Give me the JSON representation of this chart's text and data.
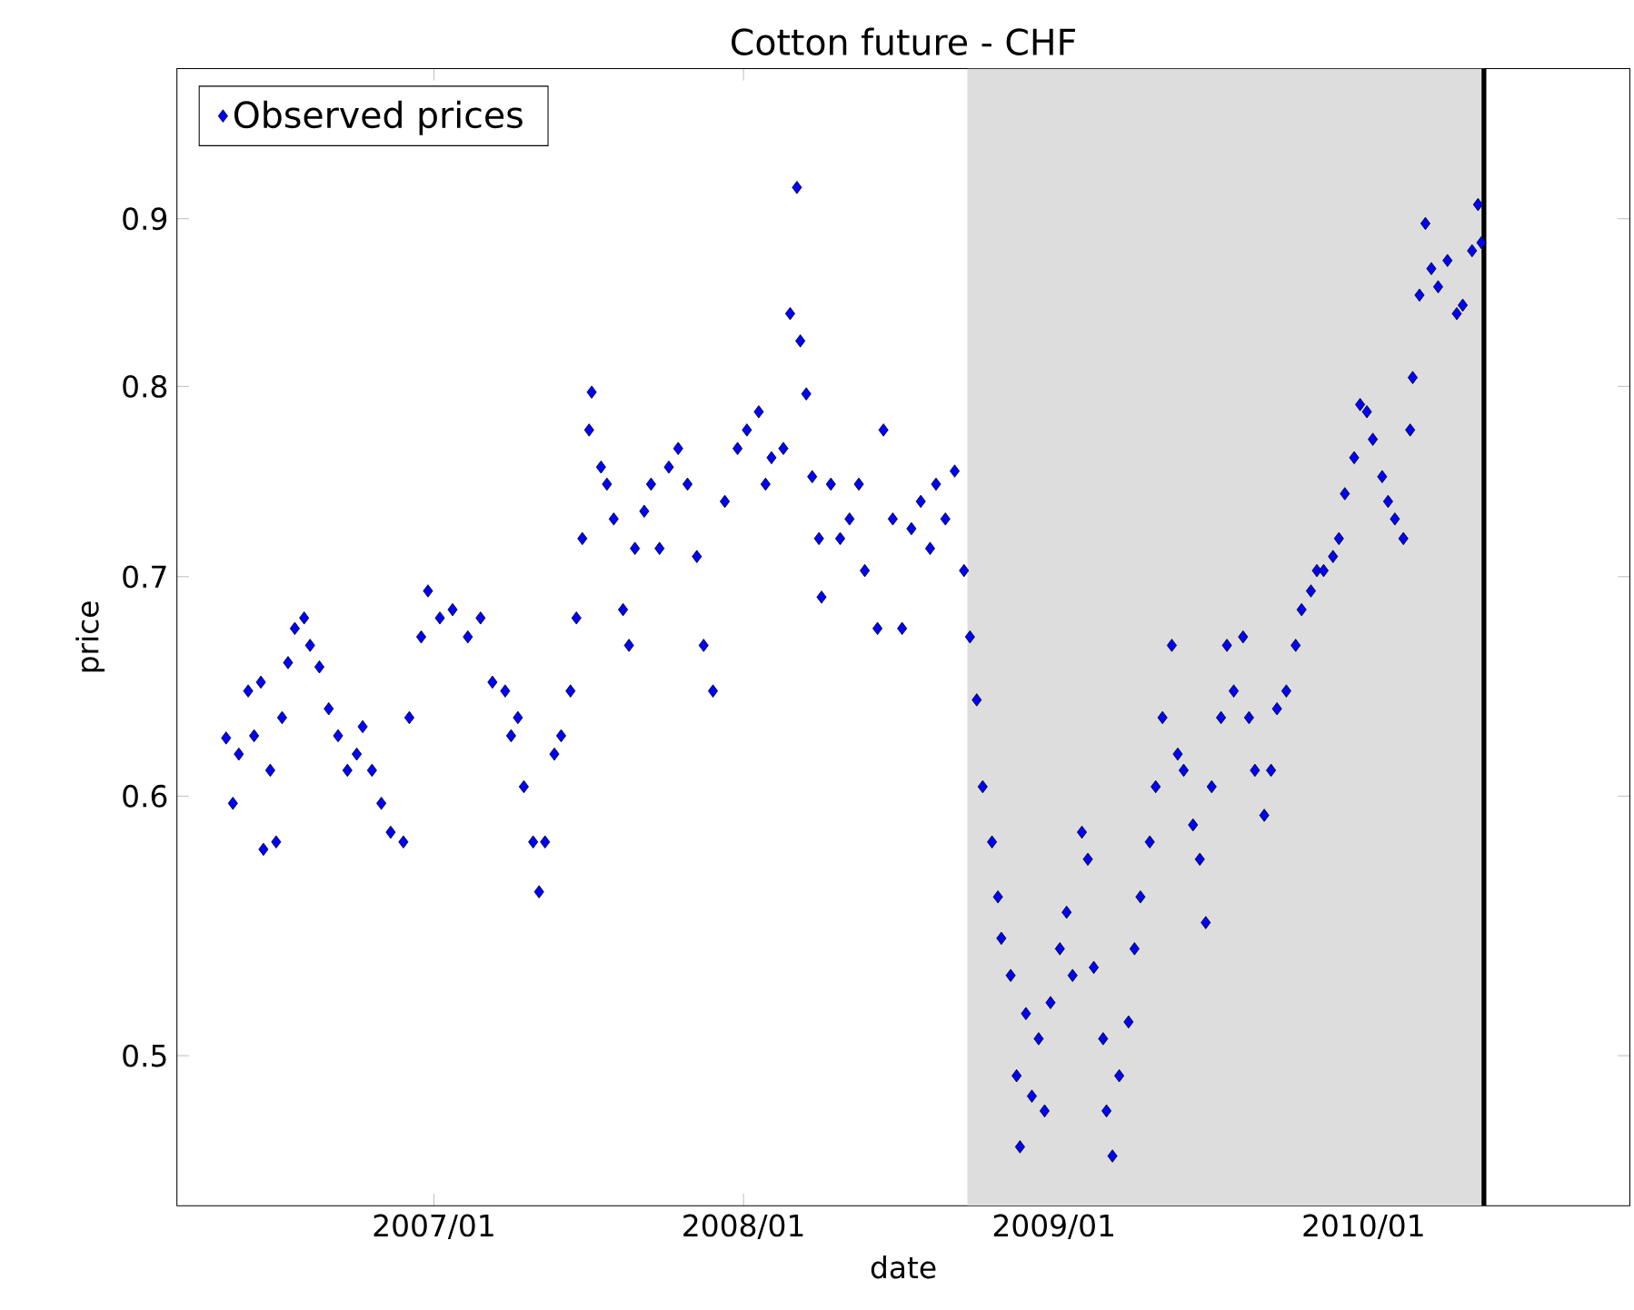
{
  "chart_data": {
    "type": "scatter",
    "title": "Cotton future - CHF",
    "xlabel": "date",
    "ylabel": "price",
    "xlim": [
      "2006-03-04",
      "2010-11-11"
    ],
    "ylim": [
      0.45,
      1.0
    ],
    "log": "y",
    "legend": "top left",
    "marker": "diamond",
    "xticks": [
      {
        "value": "2007-01-01",
        "label": "2007/01"
      },
      {
        "value": "2008-01-01",
        "label": "2008/01"
      },
      {
        "value": "2009-01-01",
        "label": "2009/01"
      },
      {
        "value": "2010-01-01",
        "label": "2010/01"
      }
    ],
    "yticks": [
      0.5,
      0.6,
      0.7,
      0.8,
      0.9
    ],
    "bands": [
      {
        "axis": "x",
        "from": "2008-09-21",
        "to": "2010-05-23",
        "color": "#dddddd"
      }
    ],
    "ref_lines": [
      {
        "axis": "x",
        "value": "2010-05-23",
        "color": "#000000"
      }
    ],
    "series": [
      {
        "name": "Observed prices",
        "color": "#0000ff",
        "x": [
          "2006-05-01",
          "2006-05-09",
          "2006-05-16",
          "2006-05-27",
          "2006-06-03",
          "2006-06-11",
          "2006-06-14",
          "2006-06-22",
          "2006-06-29",
          "2006-07-06",
          "2006-07-13",
          "2006-07-21",
          "2006-08-01",
          "2006-08-08",
          "2006-08-19",
          "2006-08-30",
          "2006-09-10",
          "2006-09-21",
          "2006-10-02",
          "2006-10-09",
          "2006-10-20",
          "2006-10-31",
          "2006-11-11",
          "2006-11-26",
          "2006-12-03",
          "2006-12-17",
          "2006-12-25",
          "2007-01-08",
          "2007-01-23",
          "2007-02-10",
          "2007-02-25",
          "2007-03-11",
          "2007-03-26",
          "2007-04-02",
          "2007-04-10",
          "2007-04-17",
          "2007-04-28",
          "2007-05-05",
          "2007-05-12",
          "2007-05-23",
          "2007-05-31",
          "2007-06-11",
          "2007-06-18",
          "2007-06-25",
          "2007-07-03",
          "2007-07-06",
          "2007-07-17",
          "2007-07-24",
          "2007-08-01",
          "2007-08-12",
          "2007-08-19",
          "2007-08-26",
          "2007-09-06",
          "2007-09-14",
          "2007-09-24",
          "2007-10-05",
          "2007-10-16",
          "2007-10-27",
          "2007-11-07",
          "2007-11-15",
          "2007-11-26",
          "2007-12-10",
          "2007-12-25",
          "2008-01-05",
          "2008-01-19",
          "2008-01-27",
          "2008-02-03",
          "2008-02-17",
          "2008-02-25",
          "2008-03-04",
          "2008-03-08",
          "2008-03-15",
          "2008-03-22",
          "2008-03-30",
          "2008-04-02",
          "2008-04-13",
          "2008-04-24",
          "2008-05-05",
          "2008-05-16",
          "2008-05-23",
          "2008-06-07",
          "2008-06-14",
          "2008-06-25",
          "2008-07-06",
          "2008-07-17",
          "2008-07-28",
          "2008-08-08",
          "2008-08-15",
          "2008-08-26",
          "2008-09-06",
          "2008-09-17",
          "2008-09-24",
          "2008-10-02",
          "2008-10-09",
          "2008-10-20",
          "2008-10-27",
          "2008-10-31",
          "2008-11-11",
          "2008-11-18",
          "2008-11-22",
          "2008-11-29",
          "2008-12-06",
          "2008-12-14",
          "2008-12-21",
          "2008-12-28",
          "2009-01-08",
          "2009-01-16",
          "2009-01-23",
          "2009-02-03",
          "2009-02-10",
          "2009-02-17",
          "2009-02-28",
          "2009-03-04",
          "2009-03-11",
          "2009-03-19",
          "2009-03-30",
          "2009-04-06",
          "2009-04-13",
          "2009-04-24",
          "2009-05-01",
          "2009-05-09",
          "2009-05-20",
          "2009-05-27",
          "2009-06-03",
          "2009-06-14",
          "2009-06-22",
          "2009-06-29",
          "2009-07-06",
          "2009-07-17",
          "2009-07-24",
          "2009-08-01",
          "2009-08-12",
          "2009-08-19",
          "2009-08-26",
          "2009-09-06",
          "2009-09-14",
          "2009-09-21",
          "2009-10-02",
          "2009-10-13",
          "2009-10-20",
          "2009-10-31",
          "2009-11-07",
          "2009-11-15",
          "2009-11-26",
          "2009-12-03",
          "2009-12-10",
          "2009-12-21",
          "2009-12-28",
          "2010-01-05",
          "2010-01-12",
          "2010-01-23",
          "2010-01-30",
          "2010-02-07",
          "2010-02-17",
          "2010-02-25",
          "2010-02-28",
          "2010-03-08",
          "2010-03-15",
          "2010-03-22",
          "2010-03-30",
          "2010-04-10",
          "2010-04-21",
          "2010-04-28",
          "2010-05-09",
          "2010-05-16",
          "2010-05-20"
        ],
        "values": [
          0.625,
          0.597,
          0.618,
          0.646,
          0.626,
          0.65,
          0.578,
          0.611,
          0.581,
          0.634,
          0.659,
          0.675,
          0.68,
          0.667,
          0.657,
          0.638,
          0.626,
          0.611,
          0.618,
          0.63,
          0.611,
          0.597,
          0.585,
          0.581,
          0.634,
          0.671,
          0.693,
          0.68,
          0.684,
          0.671,
          0.68,
          0.65,
          0.646,
          0.626,
          0.634,
          0.604,
          0.581,
          0.561,
          0.581,
          0.618,
          0.626,
          0.646,
          0.68,
          0.719,
          0.776,
          0.797,
          0.756,
          0.747,
          0.729,
          0.684,
          0.667,
          0.714,
          0.733,
          0.747,
          0.714,
          0.756,
          0.766,
          0.747,
          0.71,
          0.667,
          0.646,
          0.738,
          0.766,
          0.776,
          0.786,
          0.747,
          0.761,
          0.766,
          0.842,
          0.92,
          0.826,
          0.796,
          0.751,
          0.719,
          0.69,
          0.747,
          0.719,
          0.729,
          0.747,
          0.703,
          0.675,
          0.776,
          0.729,
          0.675,
          0.724,
          0.738,
          0.714,
          0.747,
          0.729,
          0.754,
          0.703,
          0.671,
          0.642,
          0.604,
          0.581,
          0.559,
          0.543,
          0.529,
          0.493,
          0.469,
          0.515,
          0.486,
          0.506,
          0.481,
          0.519,
          0.539,
          0.553,
          0.529,
          0.585,
          0.574,
          0.532,
          0.506,
          0.481,
          0.466,
          0.493,
          0.512,
          0.539,
          0.559,
          0.581,
          0.604,
          0.634,
          0.667,
          0.618,
          0.611,
          0.588,
          0.574,
          0.549,
          0.604,
          0.634,
          0.667,
          0.646,
          0.671,
          0.634,
          0.611,
          0.592,
          0.611,
          0.638,
          0.646,
          0.667,
          0.684,
          0.693,
          0.703,
          0.703,
          0.71,
          0.719,
          0.742,
          0.761,
          0.79,
          0.786,
          0.771,
          0.751,
          0.738,
          0.729,
          0.719,
          0.776,
          0.805,
          0.853,
          0.897,
          0.869,
          0.858,
          0.874,
          0.842,
          0.847,
          0.88,
          0.909,
          0.885
        ]
      }
    ]
  }
}
